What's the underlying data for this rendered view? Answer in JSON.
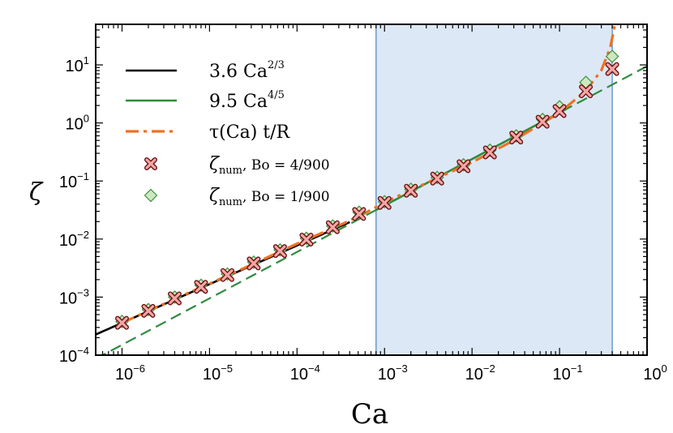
{
  "chart_data": {
    "type": "scatter",
    "xlabel": "Ca",
    "ylabel": "ζ",
    "x_scale": "log",
    "y_scale": "log",
    "xlim": [
      5e-07,
      1
    ],
    "ylim": [
      0.0001,
      50
    ],
    "x_ticks": [
      {
        "value": 1e-06,
        "base": "10",
        "exp": "−6"
      },
      {
        "value": 1e-05,
        "base": "10",
        "exp": "−5"
      },
      {
        "value": 0.0001,
        "base": "10",
        "exp": "−4"
      },
      {
        "value": 0.001,
        "base": "10",
        "exp": "−3"
      },
      {
        "value": 0.01,
        "base": "10",
        "exp": "−2"
      },
      {
        "value": 0.1,
        "base": "10",
        "exp": "−1"
      },
      {
        "value": 1,
        "base": "10",
        "exp": "0"
      }
    ],
    "y_ticks": [
      {
        "value": 0.0001,
        "base": "10",
        "exp": "−4"
      },
      {
        "value": 0.001,
        "base": "10",
        "exp": "−3"
      },
      {
        "value": 0.01,
        "base": "10",
        "exp": "−2"
      },
      {
        "value": 0.1,
        "base": "10",
        "exp": "−1"
      },
      {
        "value": 1,
        "base": "10",
        "exp": "0"
      },
      {
        "value": 10,
        "base": "10",
        "exp": "1"
      }
    ],
    "shaded_region": {
      "x": [
        0.0008,
        0.4
      ],
      "color": "#dce8f5",
      "edge_color": "#6a9ad0"
    },
    "series": [
      {
        "name": "3.6 Ca^{2/3}",
        "legend_main": "3.6 Ca",
        "legend_sup": "2/3",
        "kind": "line",
        "color": "#000000",
        "coef": 3.6,
        "power": 0.6667,
        "x_range": [
          5e-07,
          0.0004
        ]
      },
      {
        "name": "9.5 Ca^{4/5}",
        "legend_main": "9.5 Ca",
        "legend_sup": "4/5",
        "kind": "line",
        "color": "#2e8b3e",
        "coef": 9.5,
        "power": 0.8,
        "x_range": [
          0.0008,
          0.12
        ],
        "dashed_extension": true
      },
      {
        "name": "τ(Ca) t/R",
        "legend_main": "τ(Ca) t/R",
        "kind": "dashdot",
        "color": "#f07020",
        "x": [
          1e-06,
          2e-06,
          5e-06,
          1e-05,
          3e-05,
          0.0001,
          0.0003,
          0.0006,
          0.001,
          0.003,
          0.01,
          0.03,
          0.1,
          0.2,
          0.3,
          0.38,
          0.43
        ],
        "y": [
          0.00036,
          0.00058,
          0.00108,
          0.0017,
          0.0036,
          0.0083,
          0.017,
          0.028,
          0.043,
          0.092,
          0.21,
          0.5,
          1.5,
          3.6,
          8,
          20,
          50
        ]
      },
      {
        "name": "ζ_num, Bo = 4/900",
        "legend_main": "ζ",
        "legend_sub": "num",
        "legend_rest": ", Bo = 4/900",
        "kind": "cross",
        "color": "#c0282d",
        "x": [
          1e-06,
          2e-06,
          4e-06,
          8e-06,
          1.6e-05,
          3.2e-05,
          6.4e-05,
          0.000128,
          0.000256,
          0.000512,
          0.001,
          0.002,
          0.004,
          0.008,
          0.016,
          0.032,
          0.064,
          0.1,
          0.2,
          0.4
        ],
        "y": [
          0.00036,
          0.00058,
          0.00095,
          0.0015,
          0.0024,
          0.0038,
          0.0062,
          0.0098,
          0.016,
          0.027,
          0.042,
          0.068,
          0.11,
          0.18,
          0.31,
          0.56,
          1.05,
          1.6,
          3.5,
          8.5
        ]
      },
      {
        "name": "ζ_num, Bo = 1/900",
        "legend_main": "ζ",
        "legend_sub": "num",
        "legend_rest": ", Bo = 1/900",
        "kind": "diamond",
        "color": "#3f8f3f",
        "fill": "#cde8c0",
        "x": [
          1e-06,
          2e-06,
          4e-06,
          8e-06,
          1.6e-05,
          3.2e-05,
          6.4e-05,
          0.000128,
          0.000256,
          0.000512,
          0.001,
          0.002,
          0.004,
          0.008,
          0.016,
          0.032,
          0.064,
          0.1,
          0.2,
          0.4
        ],
        "y": [
          0.00038,
          0.00061,
          0.001,
          0.0016,
          0.0025,
          0.004,
          0.0065,
          0.0103,
          0.0168,
          0.029,
          0.044,
          0.072,
          0.115,
          0.19,
          0.34,
          0.6,
          1.15,
          1.9,
          5.0,
          14.0
        ]
      }
    ]
  }
}
